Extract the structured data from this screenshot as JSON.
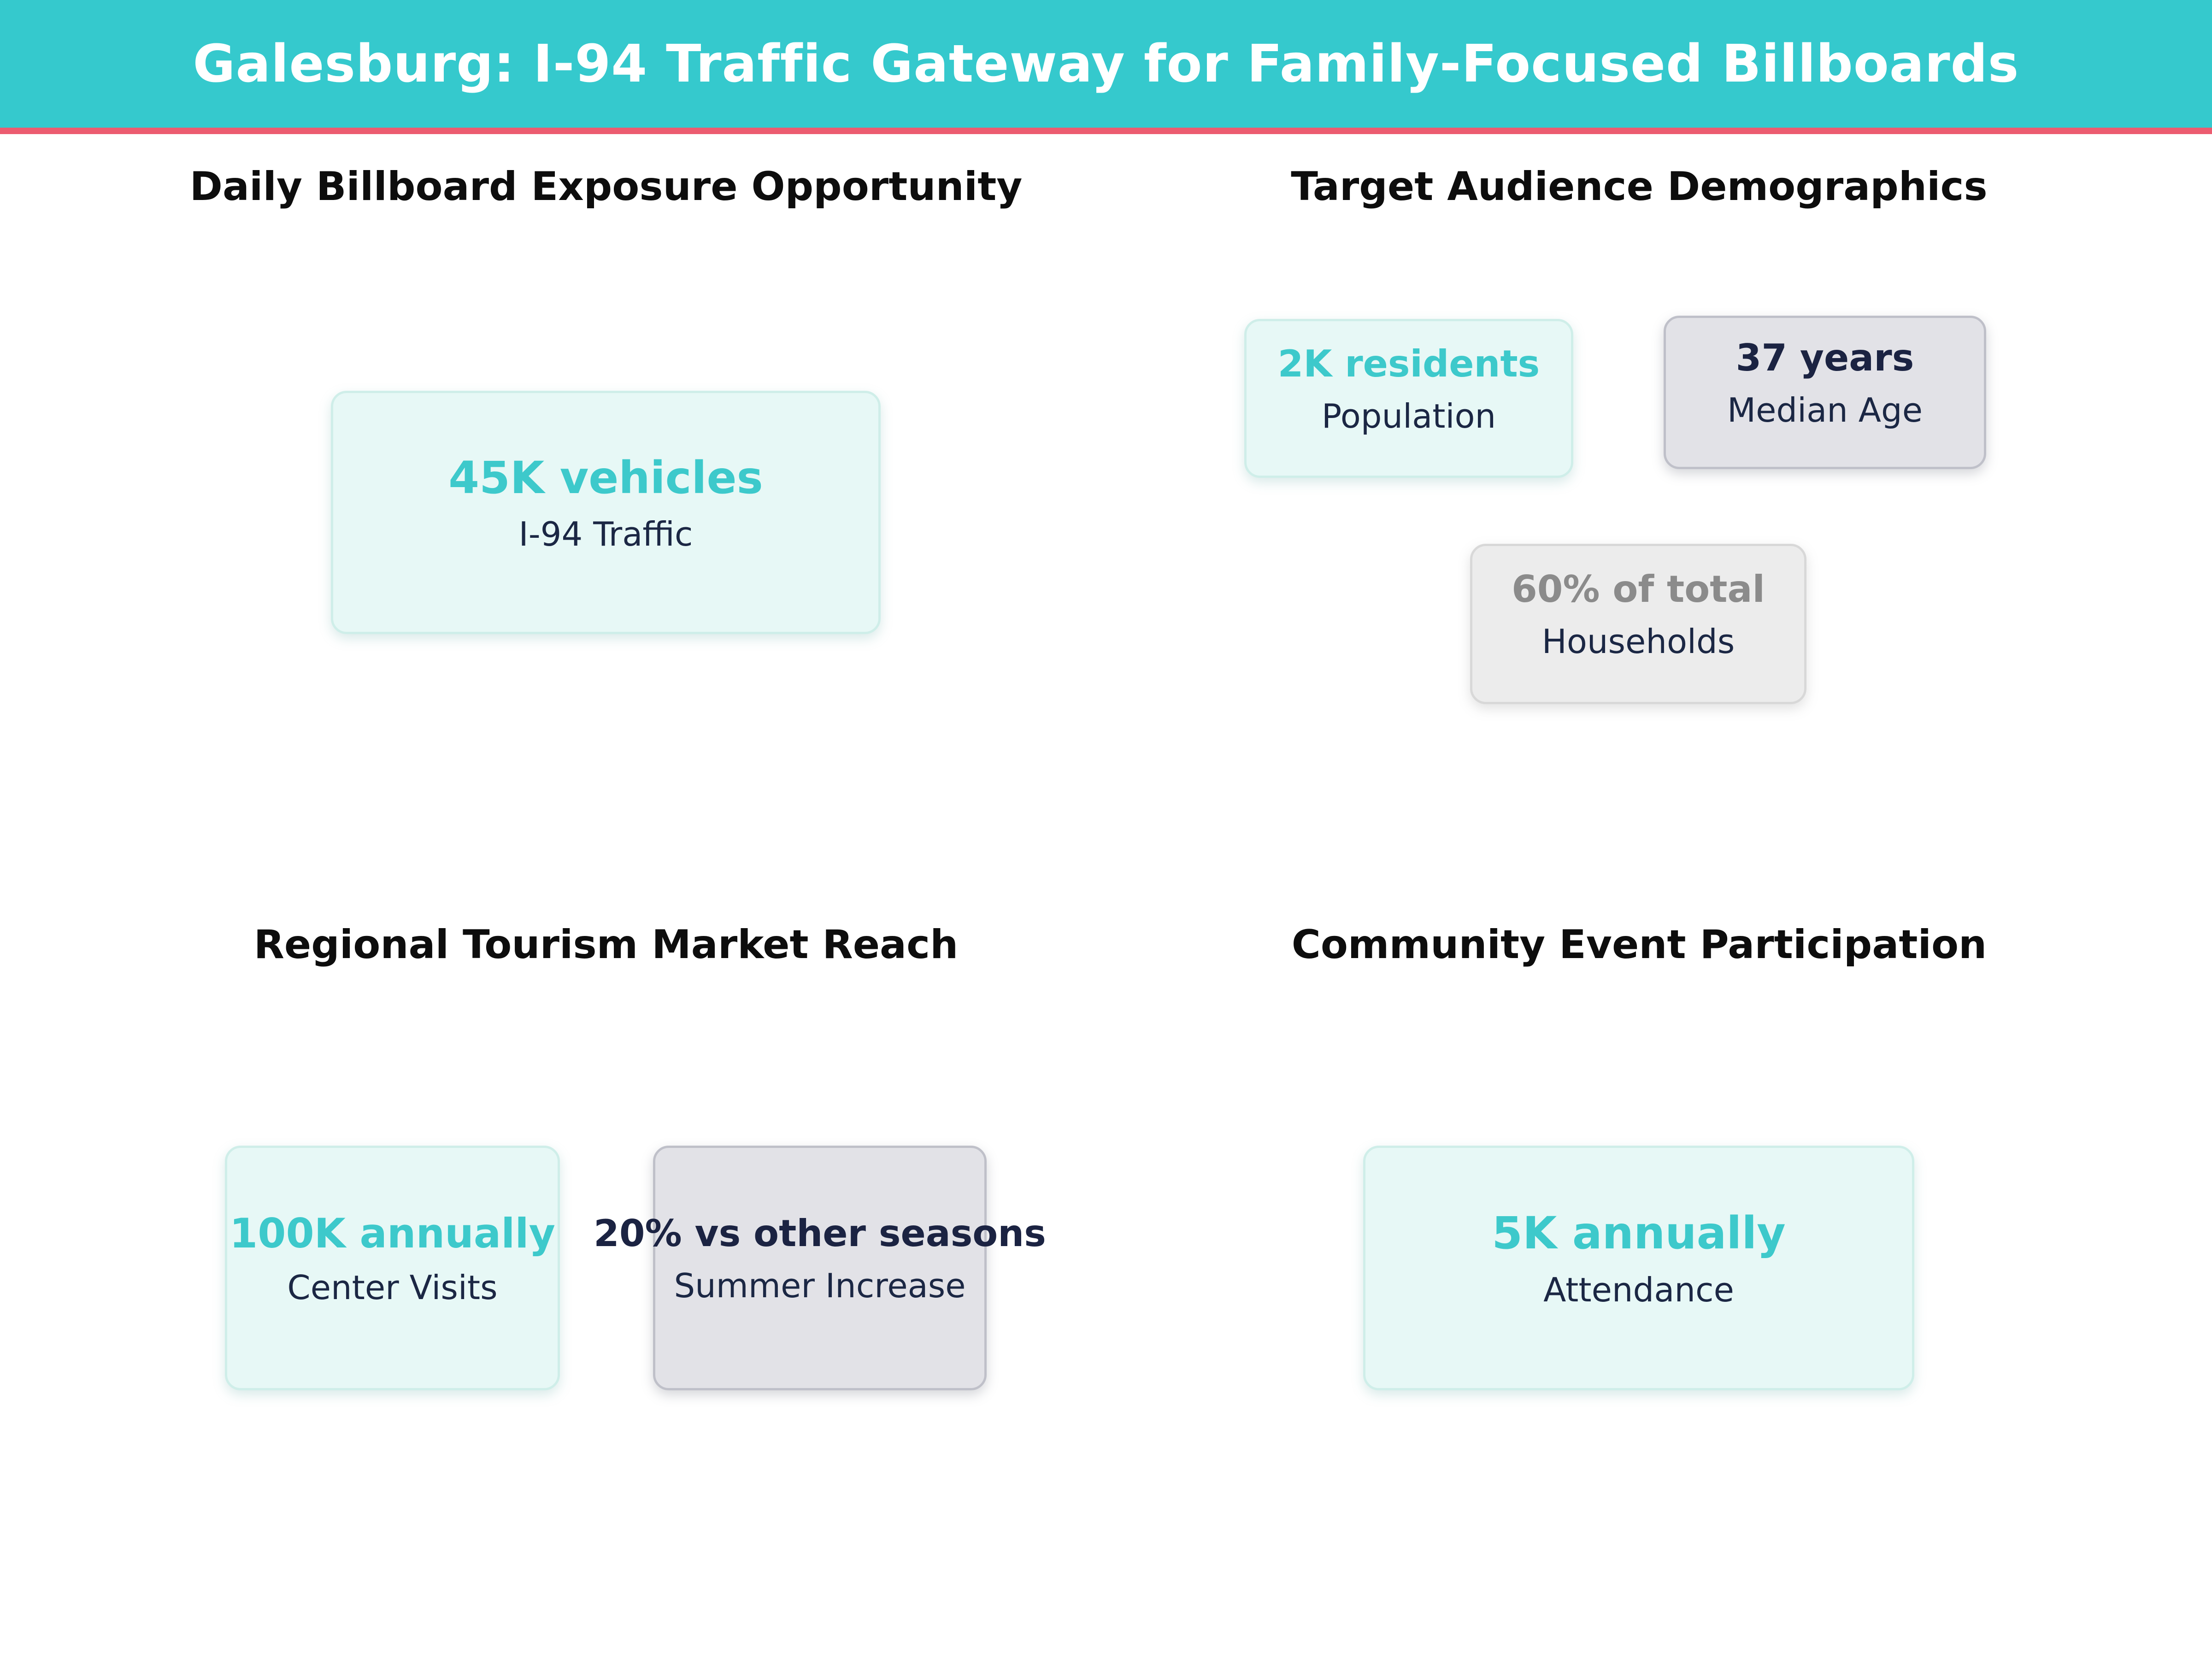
{
  "header": {
    "title": "Galesburg: I-94 Traffic Gateway for Family-Focused Billboards"
  },
  "colors": {
    "header_bg": "#35c9cd",
    "accent_rule": "#ec5c70",
    "teal_value": "#3dc9cb",
    "navy_text": "#1b2342",
    "muted_value": "#8b8b8b",
    "mint_card_bg": "#e7f8f6",
    "gray_card_bg": "#e2e2e7",
    "lightgray_card_bg": "#ececec"
  },
  "sections": [
    {
      "title": "Daily Billboard Exposure Opportunity",
      "cards": [
        {
          "value": "45K vehicles",
          "label": "I-94 Traffic",
          "style": "mint-teal"
        }
      ]
    },
    {
      "title": "Target Audience Demographics",
      "cards": [
        {
          "value": "2K residents",
          "label": "Population",
          "style": "mint-teal"
        },
        {
          "value": "37 years",
          "label": "Median Age",
          "style": "gray-navy"
        },
        {
          "value": "60% of total",
          "label": "Households",
          "style": "lightgray-muted"
        }
      ]
    },
    {
      "title": "Regional Tourism Market Reach",
      "cards": [
        {
          "value": "100K annually",
          "label": "Center Visits",
          "style": "mint-teal"
        },
        {
          "value": "20% vs other seasons",
          "label": "Summer Increase",
          "style": "gray-navy"
        }
      ]
    },
    {
      "title": "Community Event Participation",
      "cards": [
        {
          "value": "5K annually",
          "label": "Attendance",
          "style": "mint-teal"
        }
      ]
    }
  ],
  "chart_data": [
    {
      "type": "table",
      "title": "Daily Billboard Exposure Opportunity",
      "rows": [
        {
          "metric": "I-94 Traffic",
          "value": "45K vehicles"
        }
      ]
    },
    {
      "type": "table",
      "title": "Target Audience Demographics",
      "rows": [
        {
          "metric": "Population",
          "value": "2K residents"
        },
        {
          "metric": "Median Age",
          "value": "37 years"
        },
        {
          "metric": "Households",
          "value": "60% of total"
        }
      ]
    },
    {
      "type": "table",
      "title": "Regional Tourism Market Reach",
      "rows": [
        {
          "metric": "Center Visits",
          "value": "100K annually"
        },
        {
          "metric": "Summer Increase",
          "value": "20% vs other seasons"
        }
      ]
    },
    {
      "type": "table",
      "title": "Community Event Participation",
      "rows": [
        {
          "metric": "Attendance",
          "value": "5K annually"
        }
      ]
    }
  ]
}
